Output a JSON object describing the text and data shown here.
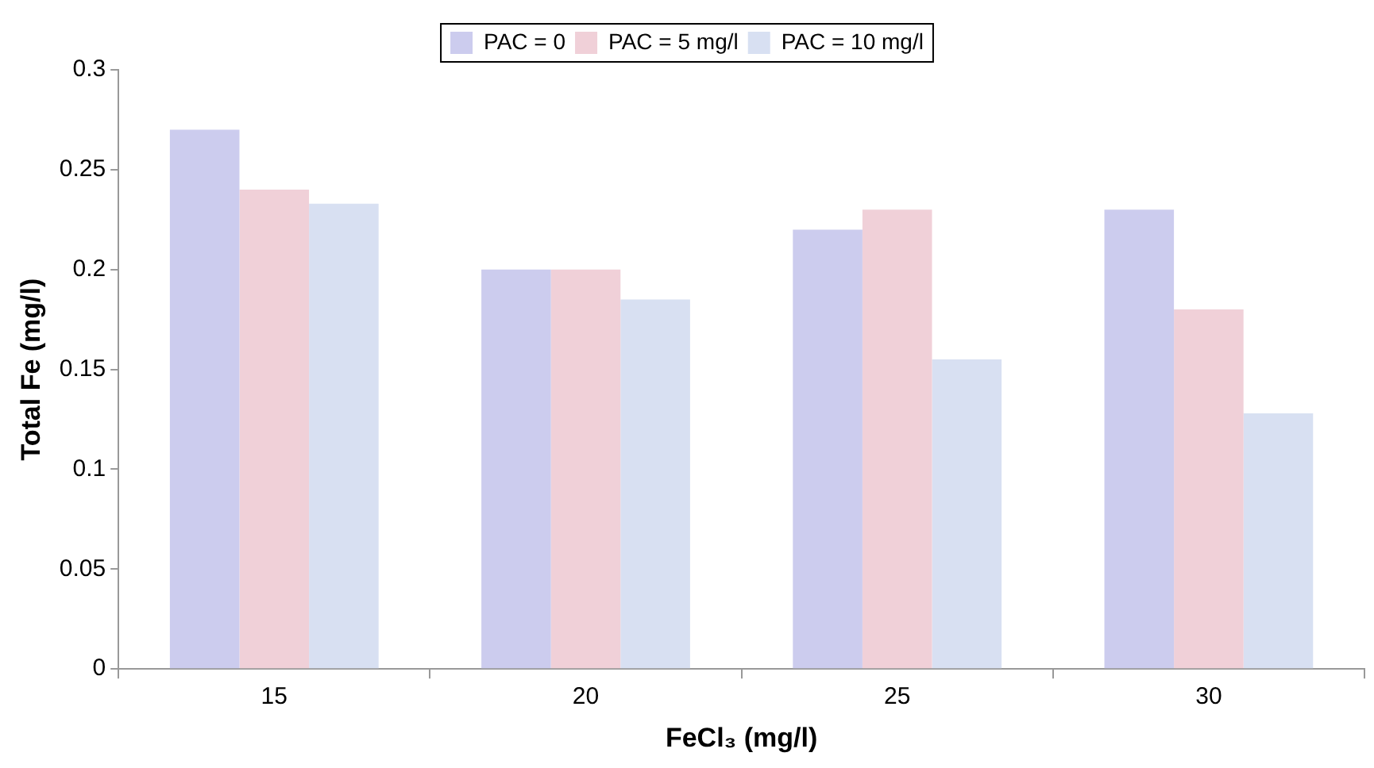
{
  "chart_data": {
    "type": "bar",
    "xlabel": "FeCl₃ (mg/l)",
    "ylabel": "Total Fe (mg/l)",
    "categories": [
      "15",
      "20",
      "25",
      "30"
    ],
    "series": [
      {
        "name": "PAC = 0",
        "color": "#ccccee",
        "values": [
          0.27,
          0.2,
          0.22,
          0.23
        ]
      },
      {
        "name": "PAC = 5 mg/l",
        "color": "#f0d0d8",
        "values": [
          0.24,
          0.2,
          0.23,
          0.18
        ]
      },
      {
        "name": "PAC = 10 mg/l",
        "color": "#d8e0f2",
        "values": [
          0.233,
          0.185,
          0.155,
          0.128
        ]
      }
    ],
    "ylim": [
      0,
      0.3
    ],
    "yticks": [
      0,
      0.05,
      0.1,
      0.15,
      0.2,
      0.25,
      0.3
    ],
    "grid": false,
    "legend": "top"
  }
}
